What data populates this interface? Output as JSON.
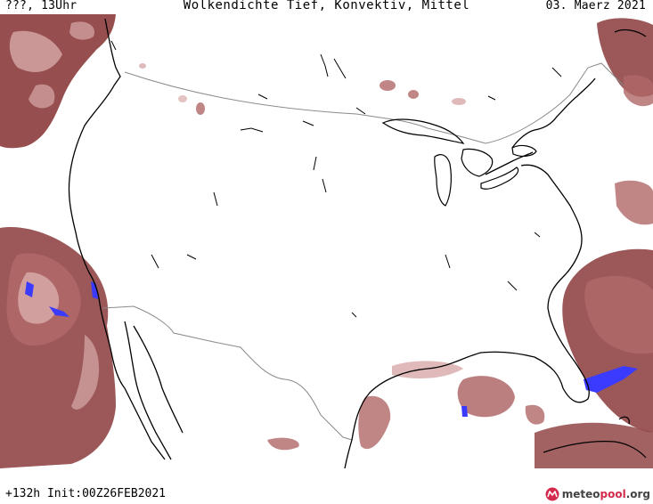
{
  "header": {
    "left": "???, 13Uhr",
    "center": "Wolkendichte  Tief, Konvektiv, Mittel",
    "right": "03. Maerz 2021"
  },
  "footer": {
    "run_info": "+132h Init:00Z26FEB2021",
    "brand_prefix": "meteo",
    "brand_highlight": "pool",
    "brand_suffix": ".org"
  },
  "colors": {
    "cloud_dense": "#8b3b3b",
    "cloud_mid": "#b06868",
    "cloud_light": "#d8a9a9",
    "convective": "#3b3bff",
    "coast": "#000000",
    "border": "#8a8a8a",
    "brand_accent": "#d2294c"
  },
  "icons": {
    "brand": "meteopool-logo-icon"
  }
}
